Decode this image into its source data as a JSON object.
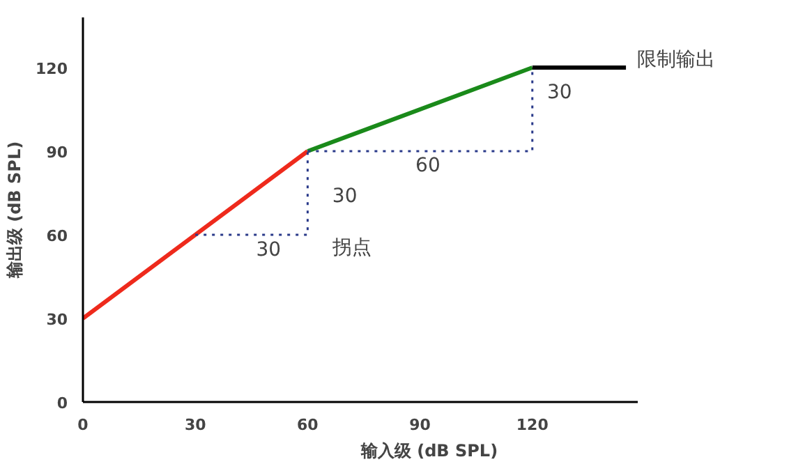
{
  "chart_data": {
    "type": "line",
    "xlabel": "输入级 (dB SPL)",
    "ylabel": "输出级 (dB SPL)",
    "xlim": [
      0,
      148
    ],
    "ylim": [
      0,
      138
    ],
    "xticks": [
      0,
      30,
      60,
      90,
      120
    ],
    "yticks": [
      0,
      30,
      60,
      90,
      120
    ],
    "grid": false,
    "series": [
      {
        "x": [
          0,
          60
        ],
        "values": [
          30,
          90
        ],
        "color": "#ee2a1c",
        "line_style": "solid"
      },
      {
        "x": [
          60,
          120
        ],
        "values": [
          90,
          120
        ],
        "color": "#1a8a1a",
        "line_style": "solid"
      },
      {
        "x": [
          120,
          145
        ],
        "values": [
          120,
          120
        ],
        "color": "#000000",
        "line_style": "solid"
      },
      {
        "x": [
          30,
          60,
          60
        ],
        "values": [
          60,
          60,
          90
        ],
        "color": "#2a3a8a",
        "line_style": "dotted"
      },
      {
        "x": [
          60,
          120,
          120
        ],
        "values": [
          90,
          90,
          120
        ],
        "color": "#2a3a8a",
        "line_style": "dotted"
      }
    ],
    "annotations": [
      "30",
      "30",
      "拐点",
      "60",
      "30",
      "限制输出"
    ]
  }
}
